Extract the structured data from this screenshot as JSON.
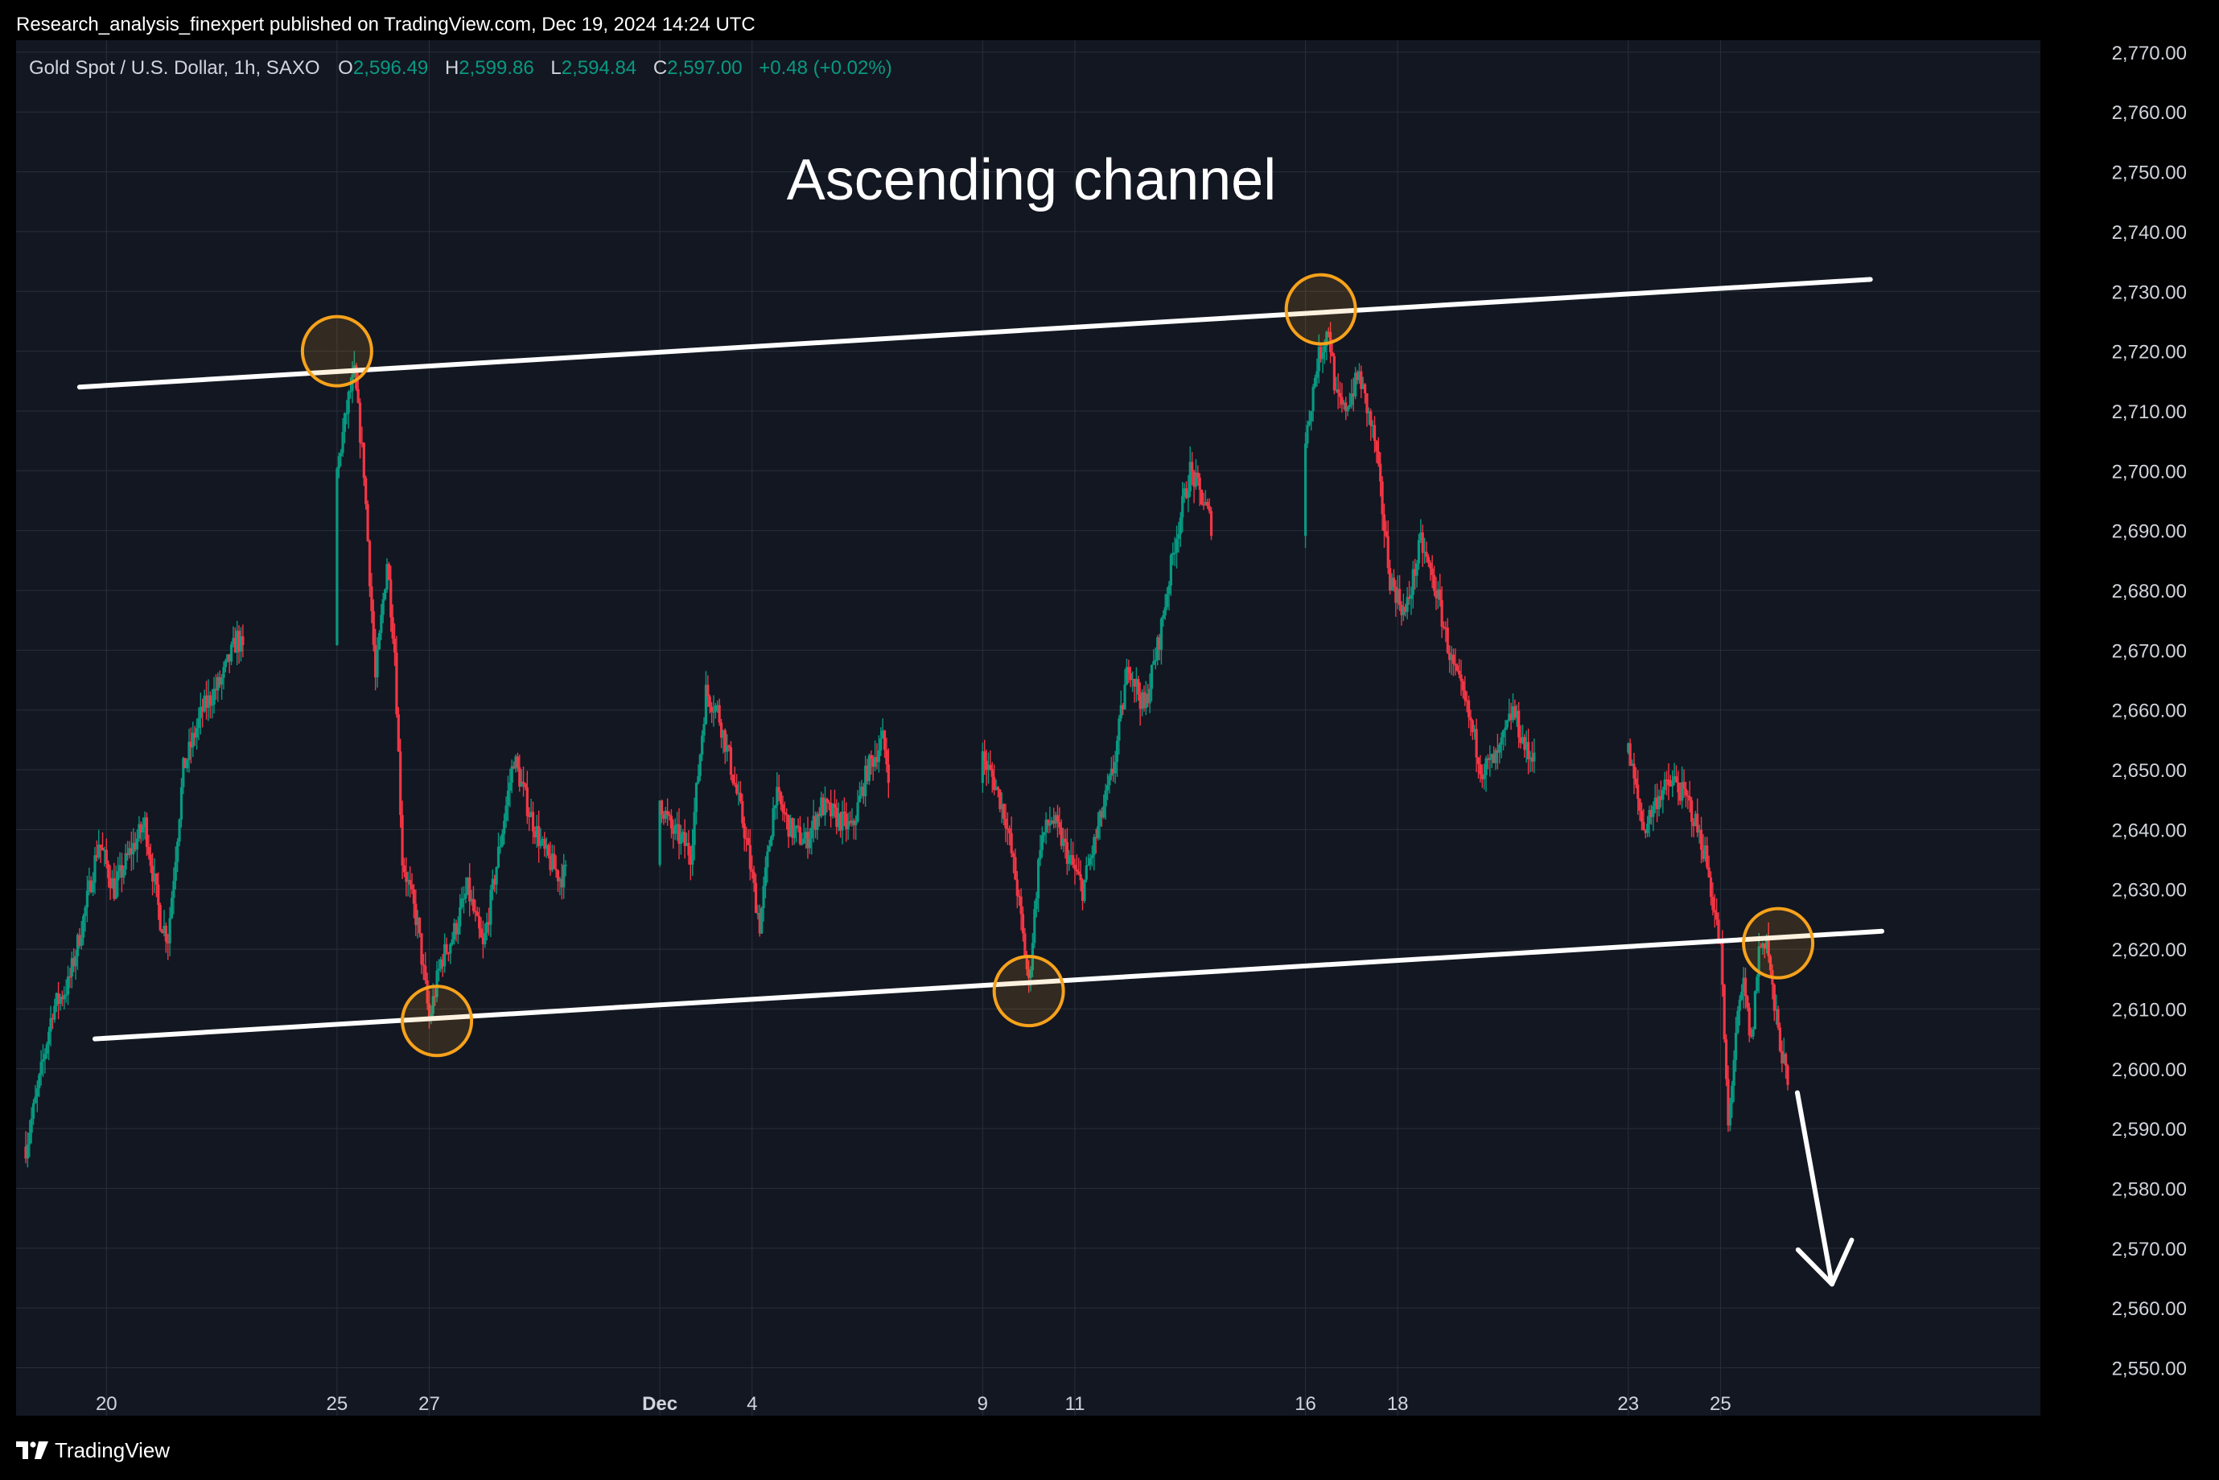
{
  "header": {
    "publish_line": "Research_analysis_finexpert published on TradingView.com, Dec 19, 2024 14:24 UTC"
  },
  "legend": {
    "symbol": "Gold Spot / U.S. Dollar, 1h, SAXO",
    "open_label": "O",
    "open": "2,596.49",
    "high_label": "H",
    "high": "2,599.86",
    "low_label": "L",
    "low": "2,594.84",
    "close_label": "C",
    "close": "2,597.00",
    "change": "+0.48 (+0.02%)"
  },
  "footer": {
    "brand": "TradingView",
    "logo_icon": "tradingview-logo-icon"
  },
  "colors": {
    "background": "#131722",
    "grid": "#2a2e39",
    "up": "#089981",
    "down": "#f23645",
    "text": "#d1d4dc",
    "annotation": "#ffffff",
    "circle": "#f7a21b"
  },
  "chart_data": {
    "type": "candlestick",
    "title": "",
    "annotation_text": "Ascending channel",
    "y_axis": {
      "side": "right",
      "range": [
        2542,
        2772
      ],
      "ticks": [
        2550,
        2560,
        2570,
        2580,
        2590,
        2600,
        2610,
        2620,
        2630,
        2640,
        2650,
        2660,
        2670,
        2680,
        2690,
        2700,
        2710,
        2720,
        2730,
        2740,
        2750,
        2760,
        2770
      ],
      "tick_labels": [
        "2,550.00",
        "2,560.00",
        "2,570.00",
        "2,580.00",
        "2,590.00",
        "2,600.00",
        "2,610.00",
        "2,620.00",
        "2,630.00",
        "2,640.00",
        "2,650.00",
        "2,660.00",
        "2,670.00",
        "2,680.00",
        "2,690.00",
        "2,700.00",
        "2,710.00",
        "2,720.00",
        "2,730.00",
        "2,740.00",
        "2,750.00",
        "2,760.00",
        "2,770.00"
      ]
    },
    "x_axis": {
      "range": [
        "2024-11-18 06:00",
        "2024-12-26 11:00"
      ],
      "ticks": [
        {
          "date": "2024-11-20",
          "label": "20",
          "bold": false
        },
        {
          "date": "2024-11-25",
          "label": "25",
          "bold": false
        },
        {
          "date": "2024-11-27",
          "label": "27",
          "bold": false
        },
        {
          "date": "2024-12-02",
          "label": "Dec",
          "bold": true
        },
        {
          "date": "2024-12-04",
          "label": "4",
          "bold": false
        },
        {
          "date": "2024-12-09",
          "label": "9",
          "bold": false
        },
        {
          "date": "2024-12-11",
          "label": "11",
          "bold": false
        },
        {
          "date": "2024-12-16",
          "label": "16",
          "bold": false
        },
        {
          "date": "2024-12-18",
          "label": "18",
          "bold": false
        },
        {
          "date": "2024-12-23",
          "label": "23",
          "bold": false
        },
        {
          "date": "2024-12-25",
          "label": "25",
          "bold": false
        }
      ]
    },
    "grid": true,
    "price_path": [
      [
        "2024-11-18 06:00",
        2587
      ],
      [
        "2024-11-18 12:00",
        2596
      ],
      [
        "2024-11-18 20:00",
        2610
      ],
      [
        "2024-11-19 04:00",
        2614
      ],
      [
        "2024-11-19 12:00",
        2625
      ],
      [
        "2024-11-19 20:00",
        2638
      ],
      [
        "2024-11-20 04:00",
        2630
      ],
      [
        "2024-11-20 12:00",
        2636
      ],
      [
        "2024-11-20 20:00",
        2641
      ],
      [
        "2024-11-21 04:00",
        2625
      ],
      [
        "2024-11-21 08:00",
        2622
      ],
      [
        "2024-11-21 16:00",
        2650
      ],
      [
        "2024-11-22 02:00",
        2660
      ],
      [
        "2024-11-22 12:00",
        2665
      ],
      [
        "2024-11-22 20:00",
        2672
      ],
      [
        "2024-11-23 00:00",
        2669
      ],
      [
        "2024-11-25 00:00",
        2700
      ],
      [
        "2024-11-25 06:00",
        2712
      ],
      [
        "2024-11-25 09:00",
        2716
      ],
      [
        "2024-11-25 14:00",
        2700
      ],
      [
        "2024-11-25 20:00",
        2665
      ],
      [
        "2024-11-26 02:00",
        2685
      ],
      [
        "2024-11-26 06:00",
        2670
      ],
      [
        "2024-11-26 10:00",
        2635
      ],
      [
        "2024-11-26 18:00",
        2624
      ],
      [
        "2024-11-27 00:00",
        2608
      ],
      [
        "2024-11-27 06:00",
        2618
      ],
      [
        "2024-11-27 12:00",
        2622
      ],
      [
        "2024-11-27 20:00",
        2630
      ],
      [
        "2024-11-28 04:00",
        2620
      ],
      [
        "2024-11-28 12:00",
        2636
      ],
      [
        "2024-11-28 20:00",
        2652
      ],
      [
        "2024-11-29 04:00",
        2643
      ],
      [
        "2024-11-29 12:00",
        2636
      ],
      [
        "2024-11-29 20:00",
        2632
      ],
      [
        "2024-12-02 00:00",
        2645
      ],
      [
        "2024-12-02 06:00",
        2640
      ],
      [
        "2024-12-02 12:00",
        2638
      ],
      [
        "2024-12-02 16:00",
        2636
      ],
      [
        "2024-12-03 00:00",
        2663
      ],
      [
        "2024-12-03 06:00",
        2660
      ],
      [
        "2024-12-03 12:00",
        2652
      ],
      [
        "2024-12-03 20:00",
        2640
      ],
      [
        "2024-12-04 04:00",
        2624
      ],
      [
        "2024-12-04 12:00",
        2646
      ],
      [
        "2024-12-04 20:00",
        2640
      ],
      [
        "2024-12-05 04:00",
        2638
      ],
      [
        "2024-12-05 12:00",
        2644
      ],
      [
        "2024-12-05 20:00",
        2642
      ],
      [
        "2024-12-06 04:00",
        2640
      ],
      [
        "2024-12-06 12:00",
        2650
      ],
      [
        "2024-12-06 20:00",
        2655
      ],
      [
        "2024-12-07 00:00",
        2648
      ],
      [
        "2024-12-09 00:00",
        2652
      ],
      [
        "2024-12-09 06:00",
        2648
      ],
      [
        "2024-12-09 12:00",
        2642
      ],
      [
        "2024-12-09 18:00",
        2630
      ],
      [
        "2024-12-10 00:00",
        2614
      ],
      [
        "2024-12-10 06:00",
        2638
      ],
      [
        "2024-12-10 12:00",
        2642
      ],
      [
        "2024-12-10 20:00",
        2636
      ],
      [
        "2024-12-11 04:00",
        2630
      ],
      [
        "2024-12-11 12:00",
        2640
      ],
      [
        "2024-12-11 20:00",
        2650
      ],
      [
        "2024-12-12 04:00",
        2668
      ],
      [
        "2024-12-12 12:00",
        2660
      ],
      [
        "2024-12-12 20:00",
        2672
      ],
      [
        "2024-12-13 04:00",
        2688
      ],
      [
        "2024-12-13 12:00",
        2700
      ],
      [
        "2024-12-13 20:00",
        2694
      ],
      [
        "2024-12-14 00:00",
        2690
      ],
      [
        "2024-12-16 00:00",
        2705
      ],
      [
        "2024-12-16 06:00",
        2718
      ],
      [
        "2024-12-16 12:00",
        2724
      ],
      [
        "2024-12-16 16:00",
        2712
      ],
      [
        "2024-12-16 20:00",
        2710
      ],
      [
        "2024-12-17 04:00",
        2716
      ],
      [
        "2024-12-17 12:00",
        2705
      ],
      [
        "2024-12-17 20:00",
        2682
      ],
      [
        "2024-12-18 04:00",
        2676
      ],
      [
        "2024-12-18 12:00",
        2688
      ],
      [
        "2024-12-18 20:00",
        2680
      ],
      [
        "2024-12-19 04:00",
        2668
      ],
      [
        "2024-12-19 12:00",
        2660
      ],
      [
        "2024-12-19 20:00",
        2650
      ],
      [
        "2024-12-20 04:00",
        2652
      ],
      [
        "2024-12-20 12:00",
        2660
      ],
      [
        "2024-12-20 20:00",
        2652
      ],
      [
        "2024-12-21 00:00",
        2654
      ],
      [
        "2024-12-23 00:00",
        2653
      ],
      [
        "2024-12-23 08:00",
        2640
      ],
      [
        "2024-12-23 16:00",
        2646
      ],
      [
        "2024-12-24 00:00",
        2648
      ],
      [
        "2024-12-24 08:00",
        2644
      ],
      [
        "2024-12-24 16:00",
        2636
      ],
      [
        "2024-12-25 00:00",
        2620
      ],
      [
        "2024-12-25 04:00",
        2590
      ],
      [
        "2024-12-25 08:00",
        2606
      ],
      [
        "2024-12-25 12:00",
        2614
      ],
      [
        "2024-12-25 16:00",
        2604
      ],
      [
        "2024-12-25 20:00",
        2620
      ],
      [
        "2024-12-26 00:00",
        2622
      ],
      [
        "2024-12-26 04:00",
        2610
      ],
      [
        "2024-12-26 11:00",
        2597
      ]
    ],
    "channel_upper": {
      "from": [
        "2024-11-19 10:00",
        2714
      ],
      "to": [
        "2024-12-28 06:00",
        2732
      ]
    },
    "channel_lower": {
      "from": [
        "2024-11-19 18:00",
        2605
      ],
      "to": [
        "2024-12-28 12:00",
        2623
      ]
    },
    "touch_points": [
      {
        "date": "2024-11-25 00:00",
        "price": 2720
      },
      {
        "date": "2024-11-27 04:00",
        "price": 2608
      },
      {
        "date": "2024-12-10 00:00",
        "price": 2613
      },
      {
        "date": "2024-12-16 08:00",
        "price": 2727
      },
      {
        "date": "2024-12-26 06:00",
        "price": 2621
      }
    ],
    "arrow": {
      "from": [
        "2024-12-26 16:00",
        2596
      ],
      "to": [
        "2024-12-27 10:00",
        2564
      ]
    }
  }
}
